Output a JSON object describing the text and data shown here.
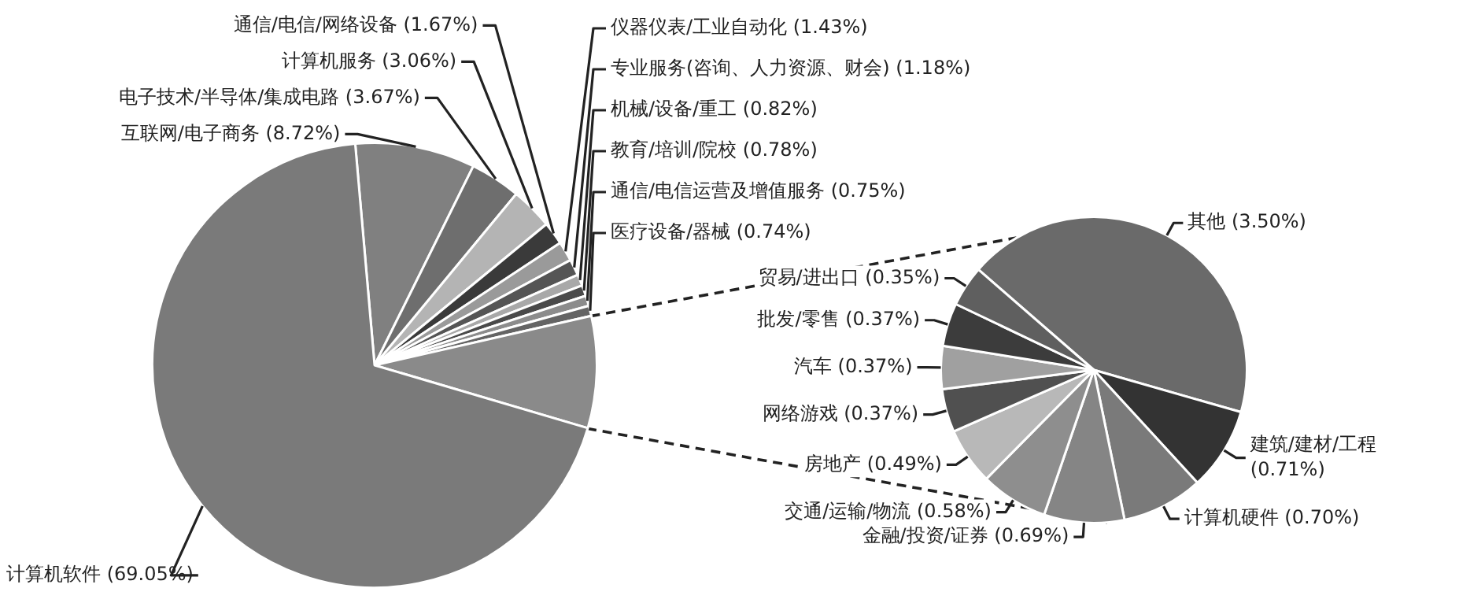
{
  "chart_data": [
    {
      "type": "pie",
      "categories": [
        "互联网/电子商务",
        "电子技术/半导体/集成电路",
        "计算机服务",
        "通信/电信/网络设备",
        "仪器仪表/工业自动化",
        "专业服务(咨询、人力资源、财会)",
        "机械/设备/重工",
        "教育/培训/院校",
        "通信/电信运营及增值服务",
        "医疗设备/器械",
        null,
        "计算机软件"
      ],
      "values": [
        8.72,
        3.67,
        3.06,
        1.67,
        1.43,
        1.18,
        0.82,
        0.78,
        0.75,
        0.74,
        8.13,
        69.05
      ],
      "value_labels": [
        "(8.72%)",
        "(3.67%)",
        "(3.06%)",
        "(1.67%)",
        "(1.43%)",
        "(1.18%)",
        "(0.82%)",
        "(0.78%)",
        "(0.75%)",
        "(0.74%)",
        null,
        "(69.05%)"
      ],
      "colors": [
        "#808080",
        "#6e6e6e",
        "#b4b4b4",
        "#3a3a3a",
        "#9a9a9a",
        "#555555",
        "#a8a8a8",
        "#4a4a4a",
        "#8c8c8c",
        "#646464",
        "#8a8a8a",
        "#7a7a7a"
      ]
    },
    {
      "type": "pie",
      "categories": [
        "其他",
        "建筑/建材/工程",
        "计算机硬件",
        "金融/投资/证券",
        "交通/运输/物流",
        "房地产",
        "网络游戏",
        "汽车",
        "批发/零售",
        "贸易/进出口"
      ],
      "values": [
        3.5,
        0.71,
        0.7,
        0.69,
        0.58,
        0.49,
        0.37,
        0.37,
        0.37,
        0.35
      ],
      "value_labels": [
        "(3.50%)",
        "(0.71%)",
        "(0.70%)",
        "(0.69%)",
        "(0.58%)",
        "(0.49%)",
        "(0.37%)",
        "(0.37%)",
        "(0.37%)",
        "(0.35%)"
      ],
      "colors": [
        "#6a6a6a",
        "#333333",
        "#7a7a7a",
        "#858585",
        "#8e8e8e",
        "#b8b8b8",
        "#505050",
        "#a0a0a0",
        "#3c3c3c",
        "#5f5f5f"
      ]
    }
  ]
}
